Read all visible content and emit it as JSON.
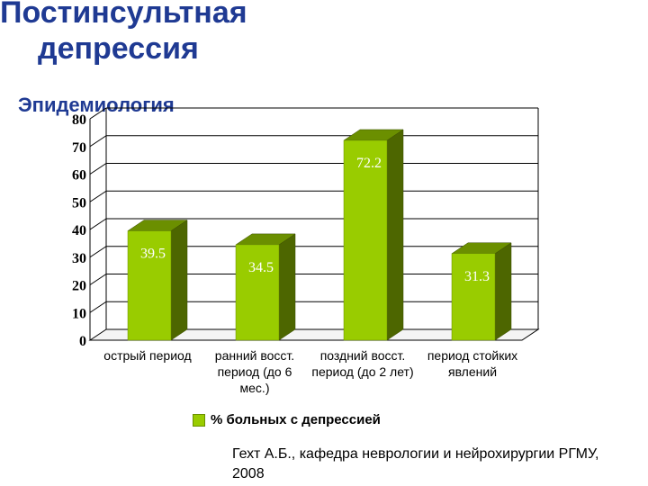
{
  "slide": {
    "title_line1": "Постинсультная",
    "title_line2": "депрессия",
    "subtitle": "Эпидемиология",
    "source": "Гехт А.Б., кафедра неврологии и нейрохирургии РГМУ, 2008"
  },
  "colors": {
    "bar_front": "#99cc00",
    "bar_side": "#4d6600",
    "bar_top": "#6b8f00",
    "title": "#1f3a93"
  },
  "chart_data": {
    "type": "bar",
    "categories": [
      "острый период",
      "ранний восст. период (до 6 мес.)",
      "поздний восст. период (до 2 лет)",
      "период стойких явлений"
    ],
    "series": [
      {
        "name": "% больных с депрессией",
        "values": [
          39.5,
          34.5,
          72.2,
          31.3
        ]
      }
    ],
    "data_labels": [
      "39.5",
      "34.5",
      "72.2",
      "31.3"
    ],
    "y_ticks": [
      "0",
      "10",
      "20",
      "30",
      "40",
      "50",
      "60",
      "70",
      "80"
    ],
    "ylim": [
      0,
      80
    ],
    "grid": true,
    "legend": "bottom"
  }
}
